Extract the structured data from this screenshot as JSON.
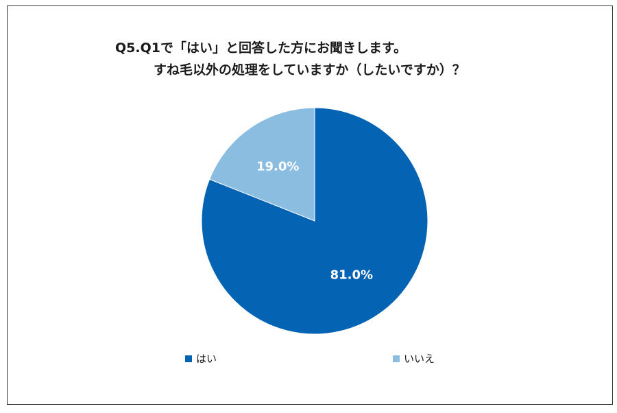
{
  "title_line1": "Q5.Q1で「はい」と回答した方にお聞きします。",
  "title_line2": "すね毛以外の処理をしていますか（したいですか）？",
  "colors": {
    "hai": "#0563B4",
    "iie": "#8BBDE0",
    "label": "#ffffff"
  },
  "chart_data": {
    "type": "pie",
    "title": "Q5.Q1で「はい」と回答した方にお聞きします。 すね毛以外の処理をしていますか（したいですか）？",
    "categories": [
      "はい",
      "いいえ"
    ],
    "values": [
      81.0,
      19.0
    ],
    "labels": [
      "81.0%",
      "19.0%"
    ],
    "legend": [
      "はい",
      "いいえ"
    ],
    "legend_position": "bottom"
  }
}
